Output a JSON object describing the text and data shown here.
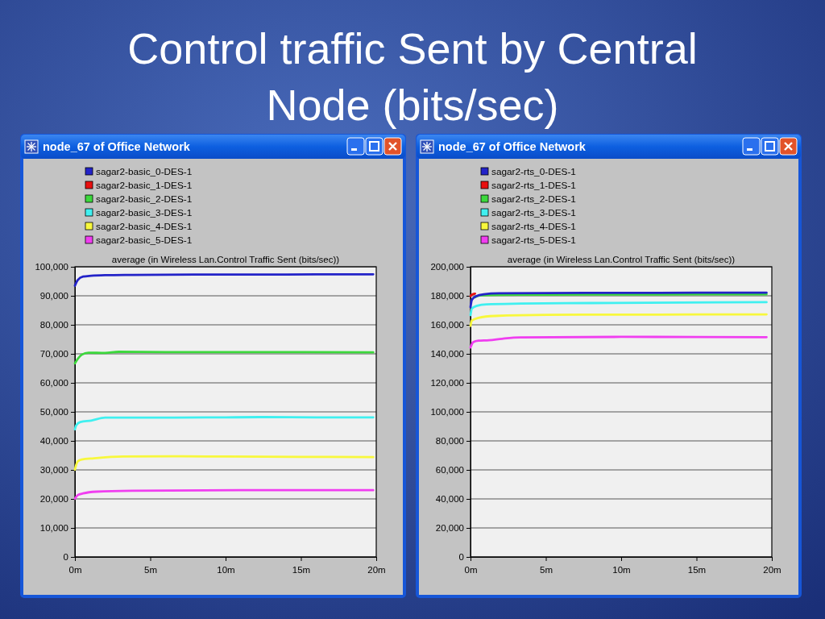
{
  "chart_data": [
    {
      "type": "other",
      "title": "Control traffic Sent by Central Node (bits/sec)"
    },
    {
      "type": "line",
      "title": "average (in Wireless Lan.Control Traffic Sent (bits/sec))",
      "annotations": [
        "node_67 of Office Network"
      ],
      "legend": "top left",
      "grid": "y",
      "xlim": [
        0,
        20
      ],
      "xticks": [
        {
          "value": 0,
          "label": "0m"
        },
        {
          "value": 5,
          "label": "5m"
        },
        {
          "value": 10,
          "label": "10m"
        },
        {
          "value": 15,
          "label": "15m"
        },
        {
          "value": 20,
          "label": "20m"
        }
      ],
      "ylim": [
        0,
        100000
      ],
      "yticks": [
        0,
        {
          "value": 10000,
          "label": "10,000"
        },
        {
          "value": 20000,
          "label": "20,000"
        },
        {
          "value": 30000,
          "label": "30,000"
        },
        {
          "value": 40000,
          "label": "40,000"
        },
        {
          "value": 50000,
          "label": "50,000"
        },
        {
          "value": 60000,
          "label": "60,000"
        },
        {
          "value": 70000,
          "label": "70,000"
        },
        {
          "value": 80000,
          "label": "80,000"
        },
        {
          "value": 90000,
          "label": "90,000"
        },
        {
          "value": 100000,
          "label": "100,000"
        }
      ],
      "series": [
        {
          "name": "sagar2-basic_0-DES-1",
          "color": "#2323c8",
          "x": [
            0,
            0.18,
            0.54,
            1.08,
            2,
            3.8,
            8,
            12,
            16,
            19.8
          ],
          "values": [
            93500,
            95400,
            96600,
            96900,
            97100,
            97200,
            97300,
            97300,
            97400,
            97400
          ]
        },
        {
          "name": "sagar2-basic_1-DES-1",
          "color": "#e81010"
        },
        {
          "name": "sagar2-basic_2-DES-1",
          "color": "#3cd83c",
          "x": [
            0,
            0.18,
            0.45,
            0.9,
            2,
            2.9,
            6,
            10,
            15,
            19.8
          ],
          "values": [
            66700,
            68200,
            69700,
            70400,
            70300,
            70700,
            70600,
            70600,
            70600,
            70500
          ]
        },
        {
          "name": "sagar2-basic_3-DES-1",
          "color": "#40f0f0",
          "x": [
            0,
            0.09,
            0.36,
            1.08,
            2,
            5,
            10,
            12.6,
            16,
            19.8
          ],
          "values": [
            44000,
            45400,
            46500,
            47000,
            48000,
            48000,
            48100,
            48200,
            48100,
            48100
          ]
        },
        {
          "name": "sagar2-basic_4-DES-1",
          "color": "#f8f83c",
          "x": [
            0,
            0.18,
            0.45,
            1.26,
            3.2,
            6.5,
            10,
            15,
            19.8
          ],
          "values": [
            30100,
            32900,
            33600,
            34000,
            34600,
            34700,
            34600,
            34500,
            34400
          ]
        },
        {
          "name": "sagar2-basic_5-DES-1",
          "color": "#f03ef0",
          "x": [
            0,
            0.18,
            0.54,
            1.44,
            3.8,
            11,
            15,
            19.8
          ],
          "values": [
            20100,
            21300,
            21900,
            22500,
            22800,
            23000,
            23000,
            23000
          ]
        }
      ]
    },
    {
      "type": "line",
      "title": "average (in Wireless Lan.Control Traffic Sent (bits/sec))",
      "annotations": [
        "node_67 of Office Network"
      ],
      "legend": "top left",
      "grid": "y",
      "xlim": [
        0,
        20
      ],
      "xticks": [
        {
          "value": 0,
          "label": "0m"
        },
        {
          "value": 5,
          "label": "5m"
        },
        {
          "value": 10,
          "label": "10m"
        },
        {
          "value": 15,
          "label": "15m"
        },
        {
          "value": 20,
          "label": "20m"
        }
      ],
      "ylim": [
        0,
        200000
      ],
      "yticks": [
        0,
        {
          "value": 20000,
          "label": "20,000"
        },
        {
          "value": 40000,
          "label": "40,000"
        },
        {
          "value": 60000,
          "label": "60,000"
        },
        {
          "value": 80000,
          "label": "80,000"
        },
        {
          "value": 100000,
          "label": "100,000"
        },
        {
          "value": 120000,
          "label": "120,000"
        },
        {
          "value": 140000,
          "label": "140,000"
        },
        {
          "value": 160000,
          "label": "160,000"
        },
        {
          "value": 180000,
          "label": "180,000"
        },
        {
          "value": 200000,
          "label": "200,000"
        }
      ],
      "series": [
        {
          "name": "sagar2-rts_0-DES-1",
          "color": "#2323c8",
          "x": [
            0,
            0.09,
            0.35,
            0.88,
            1.9,
            5,
            10,
            15,
            19.65
          ],
          "values": [
            172200,
            177200,
            179600,
            181100,
            181700,
            181900,
            182000,
            182100,
            182200
          ]
        },
        {
          "name": "sagar2-rts_1-DES-1",
          "color": "#e81010",
          "x": [
            0,
            0.1,
            0.3
          ],
          "values": [
            179800,
            180800,
            181500
          ]
        },
        {
          "name": "sagar2-rts_2-DES-1",
          "color": "#3cd83c",
          "x": [
            0.3,
            0.6,
            1.9,
            5,
            10,
            15,
            19.65
          ],
          "values": [
            179000,
            180200,
            180700,
            180800,
            180900,
            181000,
            181100
          ]
        },
        {
          "name": "sagar2-rts_3-DES-1",
          "color": "#40f0f0",
          "x": [
            0,
            0.09,
            0.44,
            1.06,
            3.36,
            8,
            14,
            19.65
          ],
          "values": [
            166700,
            171300,
            173100,
            174100,
            174600,
            175000,
            175400,
            175600
          ]
        },
        {
          "name": "sagar2-rts_4-DES-1",
          "color": "#f8f83c",
          "x": [
            0,
            0.09,
            0.53,
            1.6,
            5.1,
            10,
            15,
            19.65
          ],
          "values": [
            159300,
            163000,
            164800,
            166100,
            166900,
            167000,
            167100,
            167200
          ]
        },
        {
          "name": "sagar2-rts_5-DES-1",
          "color": "#f03ef0",
          "x": [
            0,
            0.18,
            0.53,
            1.23,
            2.1,
            3.3,
            10,
            15,
            19.65
          ],
          "values": [
            144400,
            148100,
            149100,
            149400,
            150400,
            151300,
            151700,
            151600,
            151500
          ]
        }
      ]
    }
  ]
}
